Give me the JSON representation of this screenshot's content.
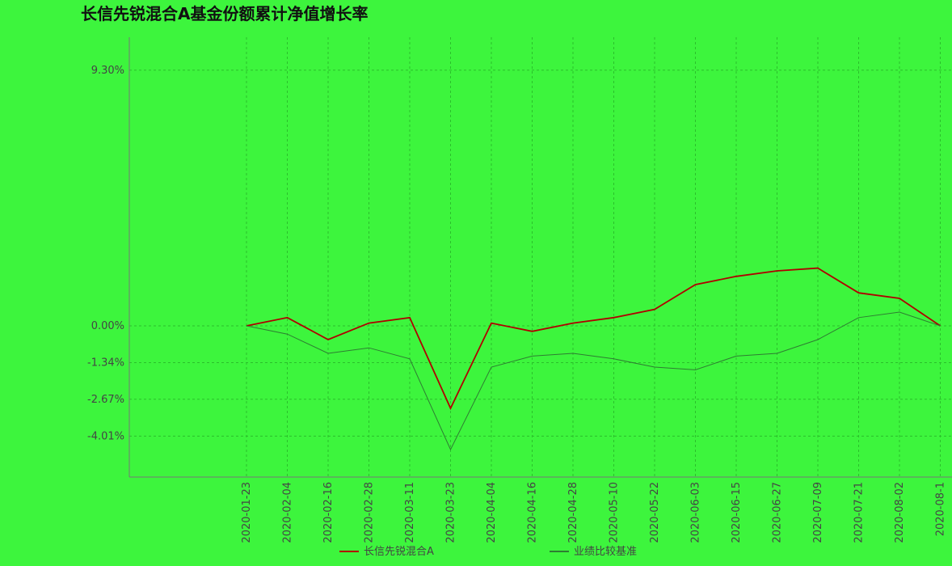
{
  "chart_data": {
    "type": "line",
    "title": "长信先锐混合A基金份额累计净值增长率",
    "categories": [
      "2020-01-23",
      "2020-02-04",
      "2020-02-16",
      "2020-02-28",
      "2020-03-11",
      "2020-03-23",
      "2020-04-04",
      "2020-04-16",
      "2020-04-28",
      "2020-05-10",
      "2020-05-22",
      "2020-06-03",
      "2020-06-15",
      "2020-06-27",
      "2020-07-09",
      "2020-07-21",
      "2020-08-02",
      "2020-08-1"
    ],
    "series": [
      {
        "name": "长信先锐混合A",
        "color": "#b00000",
        "values": [
          0,
          0.3,
          -0.5,
          0.1,
          0.3,
          -3.0,
          0.1,
          -0.2,
          0.1,
          0.3,
          0.6,
          1.5,
          1.8,
          2.0,
          2.1,
          1.2,
          1.0,
          0
        ]
      },
      {
        "name": "业绩比较基准",
        "color": "#2e7d32",
        "values": [
          0,
          -0.3,
          -1.0,
          -0.8,
          -1.2,
          -4.5,
          -1.5,
          -1.1,
          -1.0,
          -1.2,
          -1.5,
          -1.6,
          -1.1,
          -1.0,
          -0.5,
          0.3,
          0.5,
          0
        ]
      }
    ],
    "ylim": [
      -5.5,
      10.5
    ],
    "yticks": [
      {
        "value": 9.3,
        "label": "9.30%"
      },
      {
        "value": 0,
        "label": "0.00%"
      },
      {
        "value": -1.34,
        "label": "-1.34%"
      },
      {
        "value": -2.67,
        "label": "-2.67%"
      },
      {
        "value": -4.01,
        "label": "-4.01%"
      }
    ],
    "grid": true
  }
}
